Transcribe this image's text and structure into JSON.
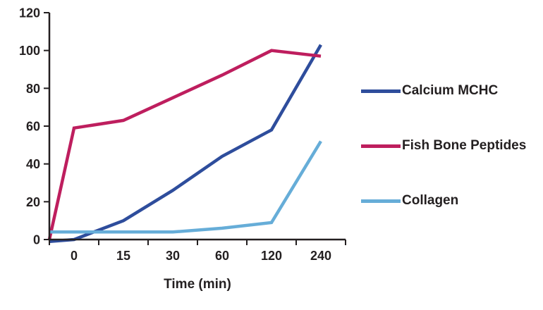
{
  "chart_data": {
    "type": "line",
    "title": "",
    "xlabel": "Time (min)",
    "ylabel": "",
    "ylim": [
      0,
      120
    ],
    "y_ticks": [
      0,
      20,
      40,
      60,
      80,
      100,
      120
    ],
    "categories": [
      "0",
      "15",
      "30",
      "60",
      "120",
      "240"
    ],
    "x_positions": [
      -0.5,
      0,
      1,
      2,
      3,
      4,
      5
    ],
    "grid": false,
    "legend_position": "right",
    "axis_color": "#231f20",
    "series": [
      {
        "name": "Calcium MCHC",
        "color": "#2e4d9c",
        "values": [
          -1,
          0,
          10,
          26,
          44,
          58,
          103
        ]
      },
      {
        "name": "Fish Bone Peptides",
        "color": "#be1e5e",
        "values": [
          0,
          59,
          63,
          75,
          87,
          100,
          97
        ]
      },
      {
        "name": "Collagen",
        "color": "#66add8",
        "values": [
          4,
          4,
          4,
          4,
          6,
          9,
          52
        ]
      }
    ]
  }
}
